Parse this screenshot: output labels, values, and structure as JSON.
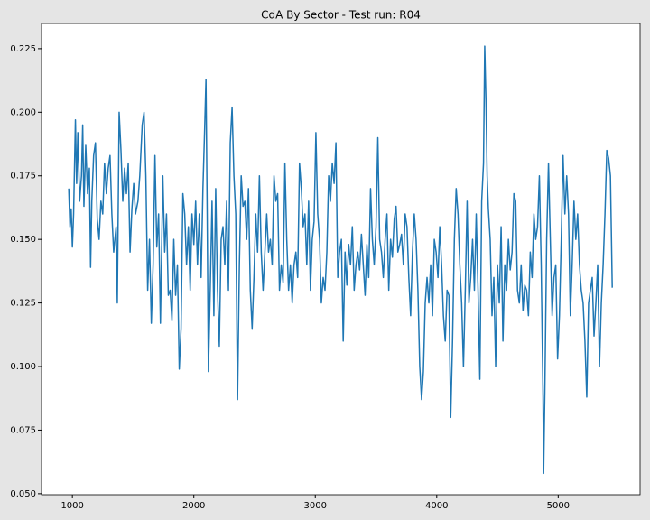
{
  "chart_data": {
    "type": "line",
    "title": "CdA By Sector - Test run: R04",
    "color": "#1f77b4",
    "x": [
      970,
      980,
      990,
      1000,
      1010,
      1025,
      1035,
      1045,
      1060,
      1075,
      1085,
      1095,
      1110,
      1125,
      1140,
      1150,
      1160,
      1175,
      1190,
      1205,
      1220,
      1235,
      1250,
      1265,
      1280,
      1295,
      1310,
      1325,
      1340,
      1360,
      1370,
      1385,
      1400,
      1415,
      1430,
      1445,
      1460,
      1475,
      1490,
      1505,
      1520,
      1540,
      1555,
      1575,
      1590,
      1605,
      1620,
      1635,
      1650,
      1665,
      1680,
      1695,
      1710,
      1725,
      1745,
      1760,
      1775,
      1790,
      1805,
      1820,
      1835,
      1850,
      1865,
      1880,
      1895,
      1910,
      1925,
      1940,
      1955,
      1970,
      1985,
      2000,
      2015,
      2030,
      2045,
      2060,
      2075,
      2090,
      2100,
      2110,
      2120,
      2135,
      2150,
      2165,
      2180,
      2195,
      2210,
      2225,
      2240,
      2255,
      2270,
      2285,
      2300,
      2315,
      2330,
      2345,
      2360,
      2375,
      2390,
      2405,
      2420,
      2435,
      2450,
      2465,
      2480,
      2495,
      2510,
      2525,
      2540,
      2555,
      2570,
      2585,
      2600,
      2615,
      2630,
      2645,
      2660,
      2675,
      2690,
      2705,
      2720,
      2735,
      2750,
      2765,
      2780,
      2795,
      2810,
      2825,
      2840,
      2855,
      2870,
      2885,
      2900,
      2915,
      2930,
      2945,
      2960,
      2975,
      2990,
      3005,
      3020,
      3035,
      3050,
      3065,
      3080,
      3095,
      3110,
      3125,
      3140,
      3155,
      3170,
      3185,
      3200,
      3215,
      3230,
      3245,
      3260,
      3275,
      3290,
      3305,
      3320,
      3335,
      3350,
      3365,
      3380,
      3395,
      3410,
      3425,
      3440,
      3455,
      3470,
      3485,
      3500,
      3515,
      3530,
      3545,
      3560,
      3575,
      3590,
      3605,
      3620,
      3635,
      3650,
      3665,
      3680,
      3695,
      3710,
      3725,
      3740,
      3755,
      3770,
      3785,
      3800,
      3815,
      3830,
      3845,
      3860,
      3875,
      3890,
      3905,
      3920,
      3935,
      3950,
      3965,
      3980,
      3995,
      4010,
      4025,
      4040,
      4055,
      4070,
      4085,
      4100,
      4115,
      4130,
      4145,
      4160,
      4175,
      4190,
      4205,
      4220,
      4235,
      4250,
      4265,
      4280,
      4295,
      4310,
      4325,
      4340,
      4355,
      4370,
      4385,
      4395,
      4405,
      4415,
      4425,
      4440,
      4455,
      4470,
      4485,
      4500,
      4515,
      4530,
      4545,
      4560,
      4575,
      4590,
      4605,
      4620,
      4635,
      4650,
      4665,
      4680,
      4695,
      4710,
      4725,
      4740,
      4755,
      4770,
      4785,
      4800,
      4815,
      4830,
      4845,
      4860,
      4875,
      4880,
      4890,
      4905,
      4920,
      4935,
      4950,
      4965,
      4980,
      4995,
      5010,
      5025,
      5040,
      5055,
      5070,
      5085,
      5100,
      5115,
      5130,
      5145,
      5160,
      5175,
      5190,
      5205,
      5220,
      5235,
      5250,
      5265,
      5280,
      5295,
      5310,
      5325,
      5340,
      5355,
      5370,
      5385,
      5400,
      5415,
      5430,
      5445
    ],
    "values": [
      0.17,
      0.155,
      0.162,
      0.147,
      0.16,
      0.197,
      0.172,
      0.192,
      0.165,
      0.175,
      0.195,
      0.163,
      0.187,
      0.168,
      0.178,
      0.139,
      0.165,
      0.183,
      0.188,
      0.158,
      0.15,
      0.165,
      0.16,
      0.18,
      0.168,
      0.178,
      0.183,
      0.16,
      0.145,
      0.155,
      0.125,
      0.2,
      0.185,
      0.165,
      0.178,
      0.168,
      0.18,
      0.145,
      0.162,
      0.172,
      0.16,
      0.165,
      0.175,
      0.195,
      0.2,
      0.175,
      0.13,
      0.15,
      0.117,
      0.14,
      0.183,
      0.147,
      0.16,
      0.117,
      0.175,
      0.145,
      0.16,
      0.128,
      0.13,
      0.118,
      0.15,
      0.128,
      0.14,
      0.099,
      0.115,
      0.168,
      0.16,
      0.14,
      0.155,
      0.13,
      0.16,
      0.148,
      0.165,
      0.14,
      0.16,
      0.135,
      0.17,
      0.195,
      0.213,
      0.16,
      0.098,
      0.13,
      0.165,
      0.12,
      0.17,
      0.13,
      0.108,
      0.15,
      0.155,
      0.14,
      0.165,
      0.13,
      0.188,
      0.202,
      0.175,
      0.16,
      0.087,
      0.14,
      0.175,
      0.163,
      0.165,
      0.15,
      0.17,
      0.13,
      0.115,
      0.135,
      0.16,
      0.145,
      0.175,
      0.145,
      0.13,
      0.145,
      0.16,
      0.145,
      0.15,
      0.14,
      0.175,
      0.165,
      0.168,
      0.13,
      0.14,
      0.133,
      0.18,
      0.15,
      0.13,
      0.14,
      0.125,
      0.14,
      0.145,
      0.135,
      0.18,
      0.17,
      0.155,
      0.16,
      0.14,
      0.165,
      0.13,
      0.15,
      0.157,
      0.192,
      0.16,
      0.15,
      0.125,
      0.135,
      0.13,
      0.145,
      0.175,
      0.165,
      0.18,
      0.172,
      0.188,
      0.135,
      0.145,
      0.15,
      0.11,
      0.145,
      0.132,
      0.148,
      0.14,
      0.155,
      0.13,
      0.14,
      0.145,
      0.138,
      0.152,
      0.14,
      0.128,
      0.148,
      0.135,
      0.17,
      0.15,
      0.14,
      0.155,
      0.19,
      0.15,
      0.145,
      0.135,
      0.15,
      0.16,
      0.13,
      0.15,
      0.143,
      0.158,
      0.163,
      0.145,
      0.148,
      0.152,
      0.14,
      0.16,
      0.155,
      0.135,
      0.12,
      0.145,
      0.16,
      0.15,
      0.13,
      0.1,
      0.087,
      0.098,
      0.125,
      0.135,
      0.125,
      0.14,
      0.12,
      0.15,
      0.145,
      0.135,
      0.155,
      0.14,
      0.12,
      0.11,
      0.13,
      0.128,
      0.08,
      0.11,
      0.15,
      0.17,
      0.16,
      0.14,
      0.125,
      0.1,
      0.13,
      0.165,
      0.125,
      0.135,
      0.15,
      0.13,
      0.16,
      0.13,
      0.095,
      0.165,
      0.18,
      0.226,
      0.205,
      0.175,
      0.162,
      0.15,
      0.12,
      0.135,
      0.1,
      0.14,
      0.125,
      0.155,
      0.11,
      0.14,
      0.13,
      0.15,
      0.138,
      0.145,
      0.168,
      0.165,
      0.13,
      0.125,
      0.14,
      0.122,
      0.132,
      0.13,
      0.12,
      0.145,
      0.135,
      0.16,
      0.15,
      0.155,
      0.175,
      0.14,
      0.088,
      0.058,
      0.09,
      0.15,
      0.18,
      0.15,
      0.12,
      0.135,
      0.14,
      0.103,
      0.12,
      0.15,
      0.183,
      0.16,
      0.175,
      0.16,
      0.12,
      0.14,
      0.165,
      0.15,
      0.16,
      0.14,
      0.13,
      0.125,
      0.11,
      0.088,
      0.125,
      0.13,
      0.135,
      0.112,
      0.125,
      0.14,
      0.1,
      0.125,
      0.14,
      0.16,
      0.185,
      0.182,
      0.175,
      0.131
    ],
    "xlim": [
      746,
      5674
    ],
    "ylim": [
      0.0496,
      0.2349
    ],
    "xticks": [
      1000,
      2000,
      3000,
      4000,
      5000
    ],
    "yticks": [
      {
        "value": 0.05,
        "label": "0.050"
      },
      {
        "value": 0.075,
        "label": "0.075"
      },
      {
        "value": 0.1,
        "label": "0.100"
      },
      {
        "value": 0.125,
        "label": "0.125"
      },
      {
        "value": 0.15,
        "label": "0.150"
      },
      {
        "value": 0.175,
        "label": "0.175"
      },
      {
        "value": 0.2,
        "label": "0.200"
      },
      {
        "value": 0.225,
        "label": "0.225"
      }
    ]
  }
}
